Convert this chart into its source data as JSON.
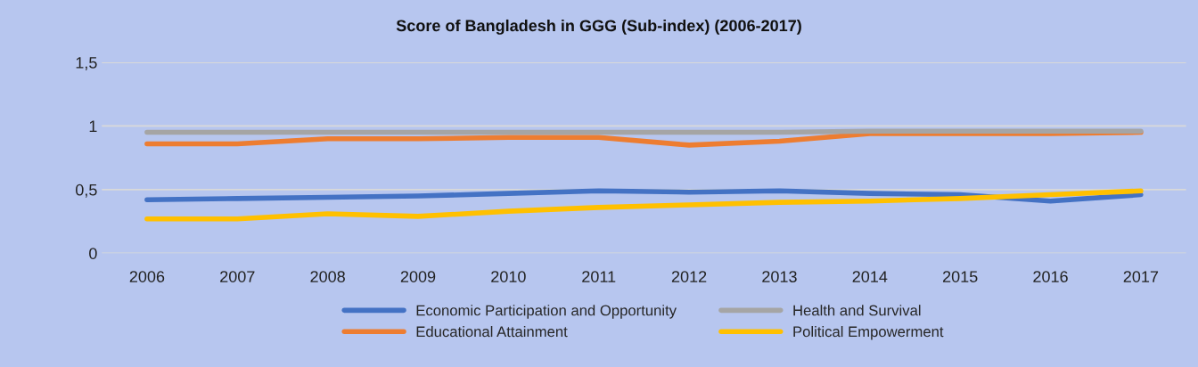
{
  "chart_data": {
    "type": "line",
    "title": "Score of Bangladesh in GGG (Sub-index) (2006-2017)",
    "categories": [
      "2006",
      "2007",
      "2008",
      "2009",
      "2010",
      "2011",
      "2012",
      "2013",
      "2014",
      "2015",
      "2016",
      "2017"
    ],
    "series": [
      {
        "name": "Economic Participation and Opportunity",
        "color": "#4472c4",
        "values": [
          0.42,
          0.43,
          0.44,
          0.45,
          0.47,
          0.49,
          0.48,
          0.49,
          0.47,
          0.46,
          0.41,
          0.46
        ]
      },
      {
        "name": "Educational Attainment",
        "color": "#ed7d31",
        "values": [
          0.86,
          0.86,
          0.9,
          0.9,
          0.91,
          0.91,
          0.85,
          0.88,
          0.94,
          0.94,
          0.94,
          0.95
        ]
      },
      {
        "name": "Health and Survival",
        "color": "#a5a5a5",
        "values": [
          0.95,
          0.95,
          0.95,
          0.95,
          0.95,
          0.95,
          0.95,
          0.95,
          0.96,
          0.96,
          0.96,
          0.96
        ]
      },
      {
        "name": "Political Empowerment",
        "color": "#ffc000",
        "values": [
          0.27,
          0.27,
          0.31,
          0.29,
          0.33,
          0.36,
          0.38,
          0.4,
          0.41,
          0.43,
          0.46,
          0.49
        ]
      }
    ],
    "ylim": [
      0,
      1.5
    ],
    "yticks": [
      0,
      {
        "value": 0.5,
        "label": "0,5"
      },
      1,
      {
        "value": 1.5,
        "label": "1,5"
      }
    ],
    "grid": "y",
    "legend": "bottom",
    "marker": "none",
    "line_style": "solid"
  }
}
